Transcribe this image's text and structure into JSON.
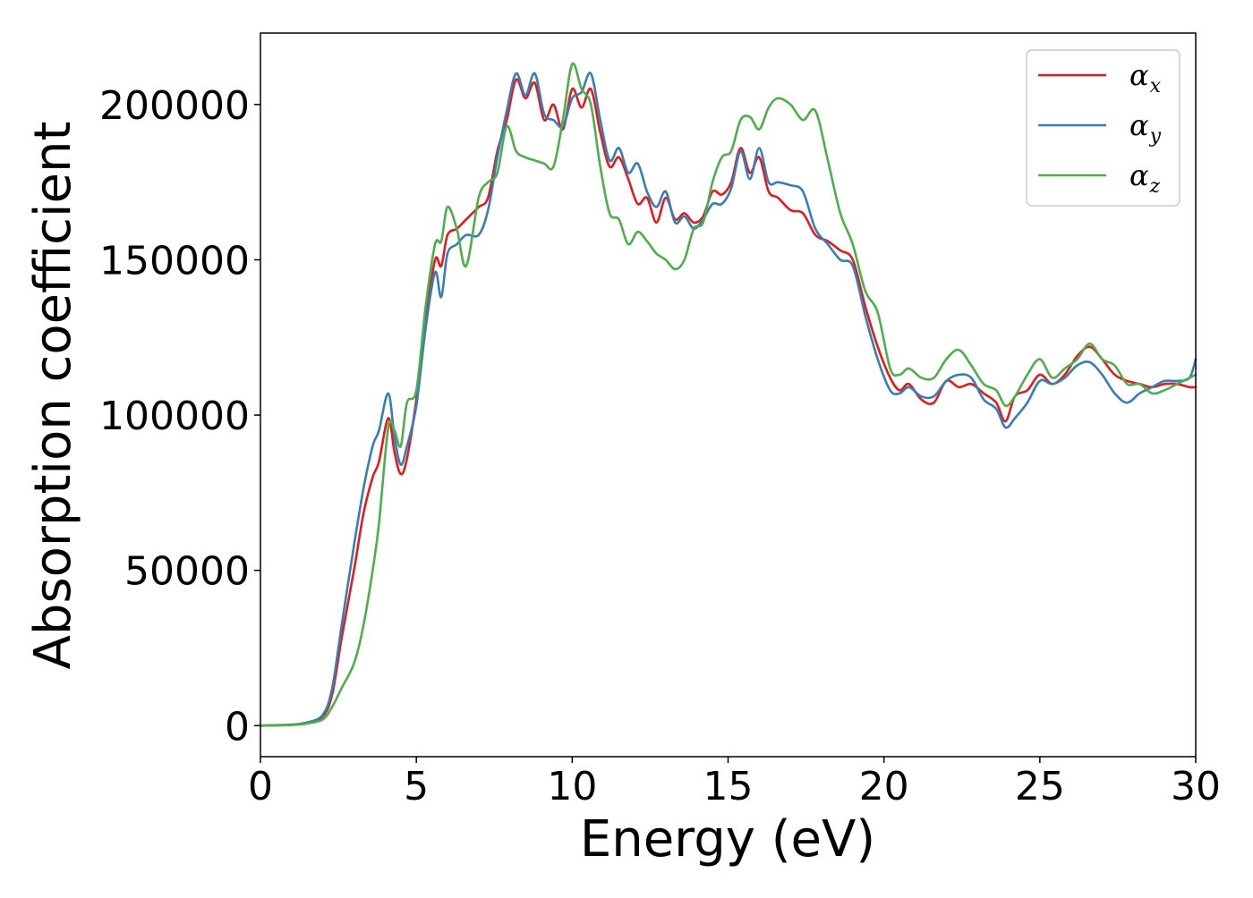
{
  "chart_data": {
    "type": "line",
    "title": "",
    "xlabel": "Energy (eV)",
    "ylabel": "Absorption coefficient",
    "xlim": [
      0,
      30
    ],
    "ylim": [
      -10000,
      223000
    ],
    "xticks": [
      0,
      5,
      10,
      15,
      20,
      25,
      30
    ],
    "yticks": [
      0,
      50000,
      100000,
      150000,
      200000
    ],
    "xtick_labels": [
      "0",
      "5",
      "10",
      "15",
      "20",
      "25",
      "30"
    ],
    "ytick_labels": [
      "0",
      "50000",
      "100000",
      "150000",
      "200000"
    ],
    "grid": false,
    "legend_position": "top-right",
    "series": [
      {
        "name": "α_x",
        "label_main": "α",
        "label_sub": "x",
        "color": "#e41a1c",
        "x": [
          0,
          1,
          1.5,
          2,
          2.3,
          2.6,
          3,
          3.3,
          3.6,
          3.8,
          4.1,
          4.3,
          4.5,
          4.7,
          5,
          5.3,
          5.6,
          5.8,
          6,
          6.3,
          6.6,
          7,
          7.3,
          7.6,
          7.9,
          8.2,
          8.5,
          8.8,
          9.1,
          9.4,
          9.7,
          10,
          10.3,
          10.6,
          10.9,
          11.2,
          11.5,
          11.8,
          12.1,
          12.4,
          12.7,
          13,
          13.3,
          13.6,
          13.9,
          14.2,
          14.5,
          14.8,
          15.1,
          15.4,
          15.7,
          16,
          16.3,
          16.6,
          17,
          17.4,
          17.8,
          18.2,
          18.6,
          19,
          19.4,
          19.8,
          20.2,
          20.5,
          20.8,
          21.2,
          21.6,
          22,
          22.4,
          22.8,
          23.2,
          23.6,
          23.9,
          24.2,
          24.6,
          25,
          25.4,
          25.8,
          26.2,
          26.6,
          27,
          27.4,
          27.8,
          28.2,
          28.6,
          29,
          29.4,
          29.8,
          30
        ],
        "y": [
          0,
          300,
          1000,
          3000,
          10000,
          28000,
          50000,
          68000,
          80000,
          85000,
          99000,
          88000,
          81000,
          86000,
          105000,
          130000,
          150000,
          148000,
          158000,
          160000,
          163000,
          167000,
          170000,
          185000,
          195000,
          208000,
          202000,
          207000,
          195000,
          200000,
          192000,
          205000,
          199000,
          205000,
          191000,
          180000,
          183000,
          176000,
          168000,
          170000,
          162000,
          170000,
          163000,
          165000,
          162000,
          164000,
          172000,
          171000,
          175000,
          186000,
          178000,
          183000,
          172000,
          170000,
          166000,
          165000,
          158000,
          156000,
          153000,
          150000,
          135000,
          122000,
          112000,
          108000,
          110000,
          105000,
          104000,
          111000,
          109000,
          110000,
          107000,
          104000,
          98000,
          106000,
          108000,
          113000,
          110000,
          113000,
          119000,
          122000,
          118000,
          113000,
          111000,
          110000,
          109000,
          110000,
          110000,
          109000,
          109000
        ]
      },
      {
        "name": "α_y",
        "label_main": "α",
        "label_sub": "y",
        "color": "#377eb8",
        "x": [
          0,
          1,
          1.5,
          2,
          2.3,
          2.6,
          3,
          3.3,
          3.6,
          3.8,
          4.1,
          4.3,
          4.5,
          4.7,
          5,
          5.3,
          5.6,
          5.8,
          6,
          6.3,
          6.6,
          7,
          7.3,
          7.6,
          7.9,
          8.2,
          8.5,
          8.8,
          9.1,
          9.4,
          9.7,
          10,
          10.3,
          10.6,
          10.9,
          11.2,
          11.5,
          11.8,
          12.1,
          12.4,
          12.7,
          13,
          13.3,
          13.6,
          13.9,
          14.2,
          14.5,
          14.8,
          15.1,
          15.4,
          15.7,
          16,
          16.3,
          16.6,
          17,
          17.4,
          17.8,
          18.2,
          18.6,
          19,
          19.4,
          19.8,
          20.2,
          20.5,
          20.8,
          21.2,
          21.6,
          22,
          22.4,
          22.8,
          23.2,
          23.6,
          23.9,
          24.2,
          24.6,
          25,
          25.4,
          25.8,
          26.2,
          26.6,
          27,
          27.4,
          27.8,
          28.2,
          28.6,
          29,
          29.4,
          29.8,
          30
        ],
        "y": [
          0,
          300,
          1000,
          3500,
          12000,
          32000,
          58000,
          76000,
          90000,
          95000,
          107000,
          93000,
          84000,
          90000,
          103000,
          128000,
          146000,
          138000,
          152000,
          155000,
          158000,
          158000,
          166000,
          183000,
          198000,
          210000,
          203000,
          210000,
          197000,
          195000,
          193000,
          202000,
          204000,
          210000,
          195000,
          182000,
          186000,
          178000,
          181000,
          172000,
          167000,
          172000,
          162000,
          164000,
          160000,
          163000,
          168000,
          168000,
          173000,
          185000,
          176000,
          186000,
          175000,
          175000,
          174000,
          172000,
          160000,
          155000,
          150000,
          148000,
          132000,
          118000,
          108000,
          107000,
          109000,
          106000,
          106000,
          111000,
          113000,
          112000,
          105000,
          102000,
          96000,
          99000,
          104000,
          111000,
          110000,
          112000,
          116000,
          117000,
          113000,
          107000,
          104000,
          107000,
          109000,
          111000,
          111000,
          112000,
          118000
        ]
      },
      {
        "name": "α_z",
        "label_main": "α",
        "label_sub": "z",
        "color": "#4daf4a",
        "x": [
          0,
          1,
          1.5,
          2,
          2.3,
          2.6,
          3,
          3.3,
          3.6,
          3.8,
          4.1,
          4.3,
          4.5,
          4.7,
          5,
          5.3,
          5.6,
          5.8,
          6,
          6.3,
          6.6,
          7,
          7.3,
          7.6,
          7.9,
          8.2,
          8.5,
          8.8,
          9.1,
          9.4,
          9.7,
          10,
          10.3,
          10.6,
          10.9,
          11.2,
          11.5,
          11.8,
          12.1,
          12.4,
          12.7,
          13,
          13.3,
          13.6,
          13.9,
          14.2,
          14.5,
          14.8,
          15.1,
          15.4,
          15.7,
          16,
          16.3,
          16.6,
          17,
          17.4,
          17.8,
          18.2,
          18.6,
          19,
          19.4,
          19.8,
          20.2,
          20.5,
          20.8,
          21.2,
          21.6,
          22,
          22.4,
          22.8,
          23.2,
          23.6,
          23.9,
          24.2,
          24.6,
          25,
          25.4,
          25.8,
          26.2,
          26.6,
          27,
          27.4,
          27.8,
          28.2,
          28.6,
          29,
          29.4,
          29.8,
          30
        ],
        "y": [
          0,
          200,
          700,
          2000,
          6000,
          12000,
          20000,
          32000,
          50000,
          65000,
          96000,
          95000,
          90000,
          104000,
          108000,
          135000,
          155000,
          156000,
          167000,
          160000,
          148000,
          170000,
          175000,
          178000,
          193000,
          185000,
          183000,
          182000,
          181000,
          180000,
          195000,
          213000,
          205000,
          200000,
          180000,
          165000,
          163000,
          155000,
          159000,
          156000,
          152000,
          150000,
          147000,
          150000,
          160000,
          162000,
          175000,
          183000,
          185000,
          195000,
          196000,
          192000,
          199000,
          202000,
          200000,
          195000,
          198000,
          182000,
          165000,
          155000,
          140000,
          133000,
          115000,
          113000,
          115000,
          112000,
          112000,
          118000,
          121000,
          116000,
          110000,
          108000,
          103000,
          106000,
          113000,
          118000,
          112000,
          115000,
          118000,
          123000,
          118000,
          116000,
          110000,
          110000,
          107000,
          108000,
          110000,
          112000,
          113000
        ]
      }
    ]
  }
}
